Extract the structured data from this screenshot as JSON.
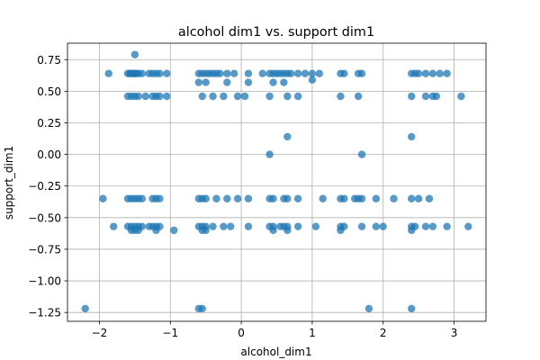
{
  "chart_data": {
    "type": "scatter",
    "title": "alcohol dim1 vs. support dim1",
    "xlabel": "alcohol_dim1",
    "ylabel": "support_dim1",
    "xlim": [
      -2.45,
      3.45
    ],
    "ylim": [
      -1.32,
      0.88
    ],
    "xticks": [
      -2,
      -1,
      0,
      1,
      2,
      3
    ],
    "yticks": [
      -1.25,
      -1.0,
      -0.75,
      -0.5,
      -0.25,
      0.0,
      0.25,
      0.5,
      0.75
    ],
    "xtick_labels": [
      "−2",
      "−1",
      "0",
      "1",
      "2",
      "3"
    ],
    "ytick_labels": [
      "−1.25",
      "−1.00",
      "−0.75",
      "−0.50",
      "−0.25",
      "0.00",
      "0.25",
      "0.50",
      "0.75"
    ],
    "grid": true,
    "marker_color": "#1f77b4",
    "marker_alpha": 0.75,
    "x": [
      -1.5,
      -1.87,
      -1.6,
      -1.57,
      -1.55,
      -1.52,
      -1.5,
      -1.48,
      -1.45,
      -1.4,
      -1.3,
      -1.25,
      -1.2,
      -1.15,
      -1.05,
      -0.6,
      -0.55,
      -0.5,
      -0.45,
      -0.4,
      -0.35,
      -0.3,
      -0.2,
      -0.1,
      0.1,
      0.3,
      0.4,
      0.45,
      0.5,
      0.55,
      0.6,
      0.65,
      0.7,
      0.8,
      0.9,
      1.0,
      1.1,
      1.4,
      1.45,
      1.65,
      1.7,
      2.4,
      2.45,
      2.5,
      2.6,
      2.7,
      2.8,
      2.9,
      -1.6,
      -1.55,
      -1.5,
      -1.45,
      -1.35,
      -1.25,
      -1.2,
      -1.15,
      -1.05,
      -0.6,
      -0.55,
      -0.5,
      -0.4,
      -0.25,
      -0.2,
      -0.05,
      0.05,
      0.1,
      0.4,
      0.45,
      0.6,
      0.65,
      0.8,
      1.0,
      1.4,
      1.65,
      2.4,
      2.6,
      2.7,
      2.75,
      3.1,
      0.65,
      0.4,
      1.7,
      2.4,
      -1.95,
      -1.6,
      -1.55,
      -1.5,
      -1.45,
      -1.4,
      -1.25,
      -1.2,
      -1.15,
      -0.6,
      -0.55,
      -0.5,
      -0.35,
      -0.2,
      -0.05,
      0.1,
      0.4,
      0.45,
      0.6,
      0.65,
      0.8,
      1.15,
      1.4,
      1.45,
      1.6,
      1.65,
      1.7,
      1.9,
      2.15,
      2.4,
      2.5,
      2.65,
      -1.8,
      -1.6,
      -1.55,
      -1.5,
      -1.45,
      -1.4,
      -1.3,
      -1.25,
      -1.2,
      -1.15,
      -0.95,
      -0.6,
      -0.55,
      -0.5,
      -0.4,
      -0.25,
      -0.15,
      0.1,
      0.4,
      0.45,
      0.55,
      0.6,
      0.65,
      0.8,
      1.05,
      1.4,
      1.45,
      1.7,
      1.9,
      2.0,
      2.4,
      2.45,
      2.6,
      2.7,
      2.9,
      3.2,
      -1.55,
      -1.5,
      -1.45,
      -1.2,
      -0.55,
      -0.5,
      0.45,
      0.65,
      1.4,
      2.4,
      -2.2,
      -0.6,
      -0.55,
      1.8,
      2.4
    ],
    "y": [
      0.79,
      0.64,
      0.64,
      0.64,
      0.64,
      0.64,
      0.64,
      0.64,
      0.64,
      0.64,
      0.64,
      0.64,
      0.64,
      0.64,
      0.64,
      0.64,
      0.64,
      0.64,
      0.64,
      0.64,
      0.64,
      0.64,
      0.64,
      0.64,
      0.64,
      0.64,
      0.64,
      0.64,
      0.64,
      0.64,
      0.64,
      0.64,
      0.64,
      0.64,
      0.64,
      0.64,
      0.64,
      0.64,
      0.64,
      0.64,
      0.64,
      0.64,
      0.64,
      0.64,
      0.64,
      0.64,
      0.64,
      0.64,
      0.46,
      0.46,
      0.46,
      0.46,
      0.46,
      0.46,
      0.46,
      0.46,
      0.46,
      0.57,
      0.46,
      0.57,
      0.46,
      0.46,
      0.57,
      0.46,
      0.46,
      0.57,
      0.46,
      0.57,
      0.57,
      0.46,
      0.46,
      0.59,
      0.46,
      0.46,
      0.46,
      0.46,
      0.46,
      0.46,
      0.46,
      0.14,
      0.0,
      0.0,
      0.14,
      -0.35,
      -0.35,
      -0.35,
      -0.35,
      -0.35,
      -0.35,
      -0.35,
      -0.35,
      -0.35,
      -0.35,
      -0.35,
      -0.35,
      -0.35,
      -0.35,
      -0.35,
      -0.35,
      -0.35,
      -0.35,
      -0.35,
      -0.35,
      -0.35,
      -0.35,
      -0.35,
      -0.35,
      -0.35,
      -0.35,
      -0.35,
      -0.35,
      -0.35,
      -0.35,
      -0.35,
      -0.35,
      -0.57,
      -0.57,
      -0.57,
      -0.57,
      -0.57,
      -0.57,
      -0.57,
      -0.57,
      -0.57,
      -0.57,
      -0.6,
      -0.57,
      -0.57,
      -0.57,
      -0.57,
      -0.57,
      -0.57,
      -0.57,
      -0.57,
      -0.57,
      -0.57,
      -0.57,
      -0.57,
      -0.57,
      -0.57,
      -0.57,
      -0.57,
      -0.57,
      -0.57,
      -0.57,
      -0.57,
      -0.57,
      -0.57,
      -0.57,
      -0.57,
      -0.57,
      -0.6,
      -0.6,
      -0.6,
      -0.6,
      -0.6,
      -0.6,
      -0.6,
      -0.6,
      -0.6,
      -0.6,
      -1.22,
      -1.22,
      -1.22,
      -1.22,
      -1.22
    ]
  }
}
